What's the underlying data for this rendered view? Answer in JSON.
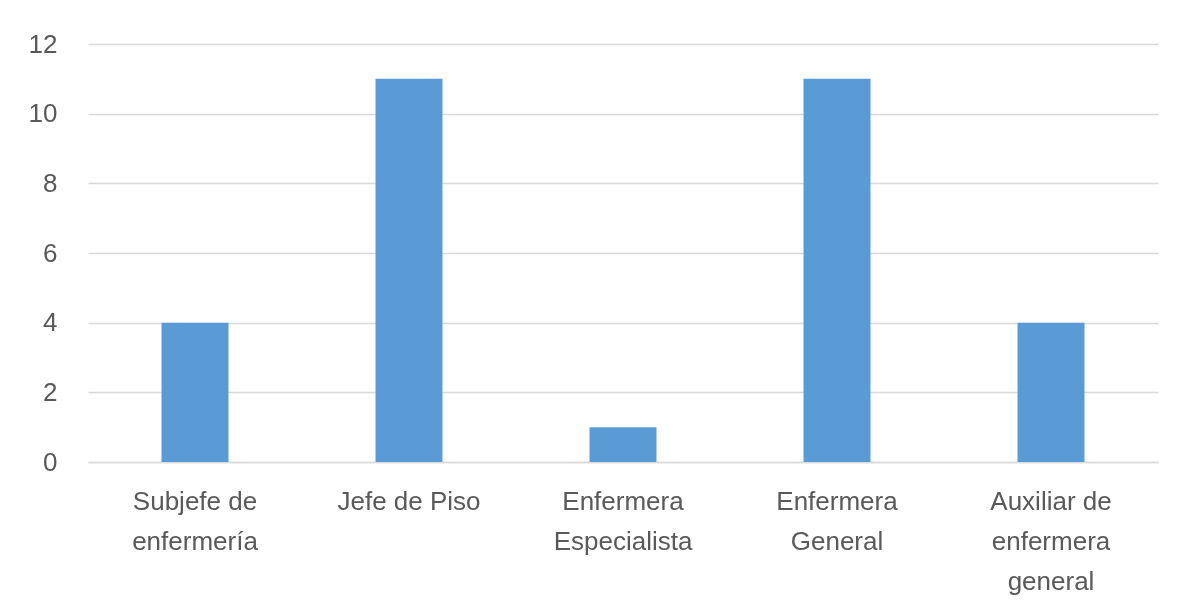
{
  "chart_data": {
    "type": "bar",
    "categories": [
      "Subjefe de enfermería",
      "Jefe de Piso",
      "Enfermera Especialista",
      "Enfermera General",
      "Auxiliar de enfermera general"
    ],
    "values": [
      4,
      11,
      1,
      11,
      4
    ],
    "color": "#5b9bd5",
    "ylim": [
      0,
      12
    ],
    "yticks": [
      0,
      2,
      4,
      6,
      8,
      10,
      12
    ],
    "grid": "y"
  }
}
